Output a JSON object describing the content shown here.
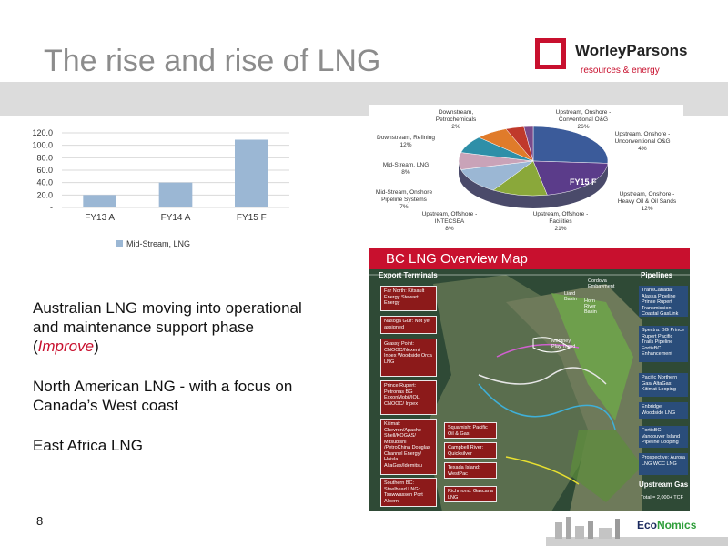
{
  "header": {
    "title": "The rise and rise of LNG"
  },
  "logo": {
    "name": "WorleyParsons",
    "tagline": "resources & energy"
  },
  "chart_data": [
    {
      "type": "bar",
      "categories": [
        "FY13 A",
        "FY14 A",
        "FY15 F"
      ],
      "series": [
        {
          "name": "Mid-Stream, LNG",
          "values": [
            20,
            40,
            109
          ]
        }
      ],
      "ylim": [
        0,
        120
      ],
      "yticks": [
        "120.0",
        "100.0",
        "80.0",
        "60.0",
        "40.0",
        "20.0",
        "-"
      ],
      "grid": true,
      "legend": "bottom",
      "color": "#9bb7d4"
    },
    {
      "type": "pie",
      "title": "FY15 F",
      "slices": [
        {
          "label": "Upstream, Onshore - Conventional O&G",
          "value": 26,
          "text": "26%",
          "color": "#3b5b9a"
        },
        {
          "label": "Upstream, Offshore - Facilities",
          "value": 21,
          "text": "21%",
          "color": "#5b3c8a"
        },
        {
          "label": "Upstream, Onshore - Heavy Oil & Oil Sands",
          "value": 12,
          "text": "12%",
          "color": "#8aa83a"
        },
        {
          "label": "Downstream, Refining",
          "value": 12,
          "text": "12%",
          "color": "#9bb7d4"
        },
        {
          "label": "Mid-Stream, LNG",
          "value": 8,
          "text": "8%",
          "color": "#c9a3b8"
        },
        {
          "label": "Upstream, Offshore - INTECSEA",
          "value": 8,
          "text": "8%",
          "color": "#2e8fa8"
        },
        {
          "label": "Mid-Stream, Onshore Pipeline Systems",
          "value": 7,
          "text": "7%",
          "color": "#e07b2a"
        },
        {
          "label": "Upstream, Onshore - Unconventional O&G",
          "value": 4,
          "text": "4%",
          "color": "#c0392b"
        },
        {
          "label": "Downstream, Petrochemicals",
          "value": 2,
          "text": "2%",
          "color": "#7a4a8a"
        }
      ],
      "labels": {
        "a": "Downstream,",
        "a2": "Petrochemicals",
        "a3": "2%",
        "b": "Upstream, Onshore -",
        "b2": "Conventional O&G",
        "b3": "26%",
        "c": "Downstream, Refining",
        "c2": "12%",
        "d": "Upstream, Onshore -",
        "d2": "Unconventional O&G",
        "d3": "4%",
        "e": "Mid-Stream, LNG",
        "e2": "8%",
        "f": "Mid-Stream, Onshore",
        "f2": "Pipeline Systems",
        "f3": "7%",
        "g": "Upstream, Onshore -",
        "g2": "Heavy Oil & Oil Sands",
        "g3": "12%",
        "h": "Upstream, Offshore -",
        "h2": "INTECSEA",
        "h3": "8%",
        "i": "Upstream, Offshore -",
        "i2": "Facilities",
        "i3": "21%"
      }
    }
  ],
  "map": {
    "title": "BC LNG Overview Map",
    "export_label": "Export Terminals",
    "pipelines_label": "Pipelines",
    "terminals": [
      "Far North: Kitsault Energy Stewart Energy",
      "Nasoga Gulf: Not yet assigned",
      "Grassy Point: CNOOC/Nexen/ Inpex Woodside Orca LNG",
      "Prince Rupert: Petronas BG ExxonMobil/IOL CNOOC/ Inpex",
      "Kitimat: Chevron/Apache Shell/KOGAS/ Mitsubishi /PetroChina Douglas Channel Energy/ Haisla AltaGas/Idemitsu",
      "Southern BC: Steelhead LNG: Tsawwassen Port Alberni"
    ],
    "center_boxes": [
      "Squamish: Pacific Oil & Gas",
      "Campbell River: Quicksilver",
      "Texada Island: WestPac",
      "Richmond: Gascana LNG"
    ],
    "pipelines": [
      "TransCanada: Alaska Pipeline Prince Rupert Transmission Coastal GasLink",
      "Spectra: BG Prince Rupert Pacific Trails Pipeline FortisBC Enhancement",
      "Pacific Northern Gas/ AltaGas: Kitimat Looping",
      "Enbridge: Woodside LNG",
      "FortisBC: Vancouver Island Pipeline Looping",
      "Prospective: Aurora LNG WCC LNG"
    ],
    "places": [
      "Cordova Embayment",
      "Liard Basin",
      "Horn River Basin",
      "Montney Play Trend"
    ],
    "upstream_label": "Upstream Gas",
    "upstream_total": "Total = 2,000+ TCF"
  },
  "body": {
    "p1_a": "Australian LNG moving into operational and maintenance support phase (",
    "p1_em": "Improve",
    "p1_b": ")",
    "p2": "North American LNG - with a focus on Canada’s West coast",
    "p3": "East Africa LNG"
  },
  "footer": {
    "page": "8",
    "brand_a": "Eco",
    "brand_b": "Nomics"
  }
}
